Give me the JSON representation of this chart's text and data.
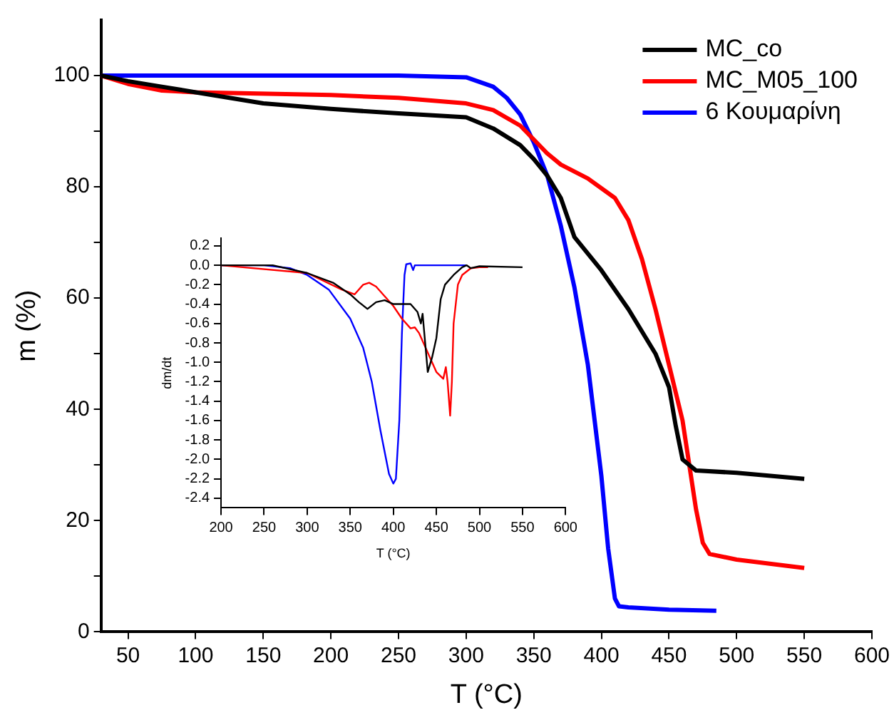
{
  "chart_data": [
    {
      "type": "line",
      "xlabel": "T (°C)",
      "ylabel": "m (%)",
      "xlim": [
        30,
        600
      ],
      "xticks": [
        50,
        100,
        150,
        200,
        250,
        300,
        350,
        400,
        450,
        500,
        550,
        600
      ],
      "ylim": [
        0,
        110
      ],
      "yticks": [
        0,
        {
          "value": 10,
          "label": null
        },
        20,
        {
          "value": 30,
          "label": null
        },
        40,
        {
          "value": 50,
          "label": null
        },
        60,
        {
          "value": 70,
          "label": null
        },
        80,
        {
          "value": 90,
          "label": null
        },
        100
      ],
      "legend": "top right",
      "grid": false,
      "marker": "none",
      "line_style": "solid",
      "series": [
        {
          "name": "MC_co",
          "color": "#000000",
          "x": [
            30,
            50,
            75,
            100,
            150,
            200,
            250,
            300,
            320,
            340,
            350,
            360,
            370,
            380,
            400,
            420,
            440,
            450,
            455,
            460,
            470,
            500,
            550
          ],
          "values": [
            100,
            99,
            98,
            97,
            95,
            94,
            93.2,
            92.5,
            90.5,
            87.5,
            85,
            82,
            78,
            71,
            65,
            58,
            50,
            44,
            37,
            31,
            29,
            28.6,
            27.5
          ]
        },
        {
          "name": "MC_M05_100",
          "color": "#ff0000",
          "x": [
            30,
            50,
            75,
            100,
            200,
            250,
            300,
            320,
            340,
            350,
            360,
            370,
            390,
            410,
            420,
            430,
            440,
            450,
            460,
            465,
            470,
            475,
            480,
            500,
            550
          ],
          "values": [
            100,
            98.5,
            97.3,
            97,
            96.5,
            96,
            95,
            93.8,
            91,
            88.5,
            86,
            84,
            81.5,
            78,
            74,
            67,
            58,
            48,
            38,
            30,
            22,
            16,
            14,
            13,
            11.5
          ]
        },
        {
          "name": "6 Κουμαρίνη",
          "color": "#0000ff",
          "x": [
            30,
            250,
            300,
            320,
            330,
            340,
            350,
            360,
            370,
            380,
            390,
            395,
            400,
            405,
            410,
            413,
            420,
            450,
            485
          ],
          "values": [
            100,
            100,
            99.7,
            98,
            96,
            93,
            88,
            82,
            73,
            62,
            48,
            38,
            28,
            15,
            6,
            4.6,
            4.4,
            4,
            3.8
          ]
        }
      ]
    },
    {
      "type": "line",
      "xlabel": "T (°C)",
      "ylabel": "dm/dt",
      "xlim": [
        200,
        600
      ],
      "xticks": [
        200,
        250,
        300,
        350,
        400,
        450,
        500,
        550,
        600
      ],
      "ylim": [
        -2.5,
        0.28
      ],
      "yticks": [
        {
          "value": 0.2,
          "label": "0.2"
        },
        {
          "value": 0,
          "label": "0.0"
        },
        {
          "value": -0.2,
          "label": "-0.2"
        },
        {
          "value": -0.4,
          "label": "-0.4"
        },
        {
          "value": -0.6,
          "label": "-0.6"
        },
        {
          "value": -0.8,
          "label": "-0.8"
        },
        {
          "value": -1,
          "label": "-1.0"
        },
        {
          "value": -1.2,
          "label": "-1.2"
        },
        {
          "value": -1.4,
          "label": "-1.4"
        },
        {
          "value": -1.6,
          "label": "-1.6"
        },
        {
          "value": -1.8,
          "label": "-1.8"
        },
        {
          "value": -2,
          "label": "-2.0"
        },
        {
          "value": -2.2,
          "label": "-2.2"
        },
        {
          "value": -2.4,
          "label": "-2.4"
        }
      ],
      "grid": false,
      "marker": "none",
      "line_style": "solid",
      "series": [
        {
          "color": "#000000",
          "x": [
            200,
            260,
            300,
            330,
            350,
            360,
            370,
            380,
            390,
            400,
            410,
            420,
            428,
            432,
            434,
            437,
            440,
            445,
            450,
            455,
            460,
            470,
            480,
            485,
            490,
            500,
            550
          ],
          "values": [
            0,
            0,
            -0.08,
            -0.18,
            -0.3,
            -0.38,
            -0.45,
            -0.38,
            -0.36,
            -0.4,
            -0.4,
            -0.4,
            -0.48,
            -0.6,
            -0.5,
            -0.8,
            -1.1,
            -0.95,
            -0.75,
            -0.35,
            -0.2,
            -0.1,
            -0.02,
            0,
            -0.03,
            -0.01,
            -0.02
          ]
        },
        {
          "color": "#ff0000",
          "x": [
            200,
            300,
            340,
            355,
            365,
            372,
            380,
            400,
            410,
            420,
            425,
            430,
            440,
            450,
            458,
            461,
            463,
            466,
            468,
            470,
            475,
            480,
            490,
            500,
            510
          ],
          "values": [
            0,
            -0.08,
            -0.25,
            -0.3,
            -0.2,
            -0.18,
            -0.22,
            -0.42,
            -0.55,
            -0.65,
            -0.64,
            -0.7,
            -0.9,
            -1.1,
            -1.17,
            -1.05,
            -1.2,
            -1.55,
            -1.2,
            -0.6,
            -0.2,
            -0.1,
            -0.03,
            -0.02,
            -0.02
          ]
        },
        {
          "color": "#0000ff",
          "x": [
            200,
            250,
            280,
            300,
            325,
            350,
            365,
            375,
            385,
            395,
            400,
            403,
            407,
            410,
            413,
            415,
            420,
            423,
            425,
            430,
            485
          ],
          "values": [
            0,
            0,
            -0.03,
            -0.1,
            -0.25,
            -0.55,
            -0.85,
            -1.2,
            -1.7,
            -2.15,
            -2.25,
            -2.2,
            -1.6,
            -0.7,
            -0.1,
            0.01,
            0.02,
            -0.05,
            0,
            0,
            0
          ]
        }
      ]
    }
  ]
}
